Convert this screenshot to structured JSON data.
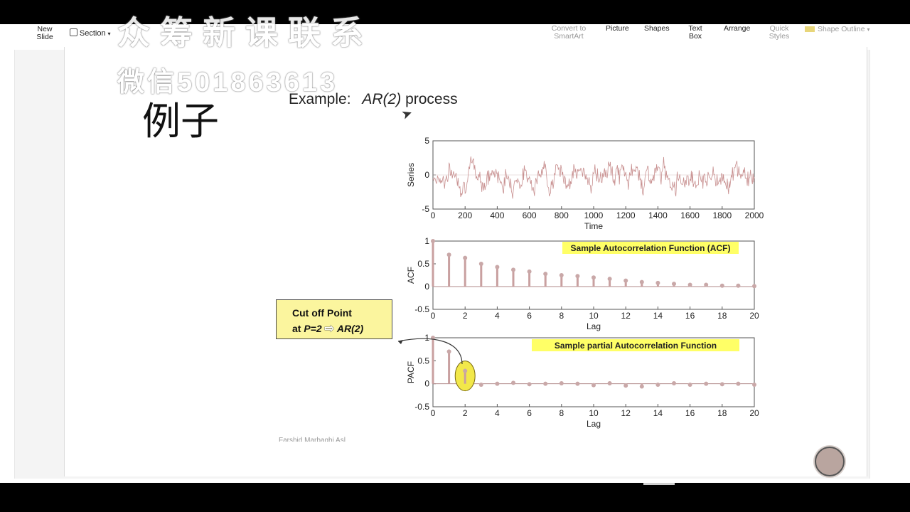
{
  "ribbon": {
    "new_slide": "New\nSlide",
    "section": "Section",
    "convert_smartart": "Convert to\nSmartArt",
    "picture": "Picture",
    "shapes": "Shapes",
    "text_box": "Text\nBox",
    "arrange": "Arrange",
    "quick_styles": "Quick\nStyles",
    "shape_outline": "Shape Outline"
  },
  "watermark": {
    "line1": "众筹新课联系",
    "line2": "微信501863613"
  },
  "slide": {
    "title_cn": "例子",
    "example_label": "Example:",
    "example_model": "AR(2)",
    "example_suffix": "process",
    "footer": "Farshid Marbaghi Asl"
  },
  "callout": {
    "line1": "Cut off Point",
    "line2_prefix": "at",
    "line2_p": "P=2",
    "line2_model": "AR(2)"
  },
  "colors": {
    "stem": "#c9a0a0",
    "series_line": "#c89090",
    "zero_line": "#b08888",
    "axis": "#555555",
    "label_box": "#ffff66",
    "highlight": "#f2e84a"
  },
  "chart_data": [
    {
      "type": "line",
      "xlabel": "Time",
      "ylabel": "Series",
      "xlim": [
        0,
        2000
      ],
      "ylim": [
        -5,
        5
      ],
      "xticks": [
        0,
        200,
        400,
        600,
        800,
        1000,
        1200,
        1400,
        1600,
        1800,
        2000
      ],
      "yticks": [
        -5,
        0,
        5
      ],
      "note": "Simulated AR(2) time series of 2000 observations fluctuating roughly between -3 and 3"
    },
    {
      "type": "bar",
      "title": "Sample Autocorrelation Function (ACF)",
      "xlabel": "Lag",
      "ylabel": "ACF",
      "xlim": [
        0,
        20
      ],
      "ylim": [
        -0.5,
        1
      ],
      "xticks": [
        0,
        2,
        4,
        6,
        8,
        10,
        12,
        14,
        16,
        18,
        20
      ],
      "yticks": [
        -0.5,
        0,
        0.5,
        1
      ],
      "x": [
        0,
        1,
        2,
        3,
        4,
        5,
        6,
        7,
        8,
        9,
        10,
        11,
        12,
        13,
        14,
        15,
        16,
        17,
        18,
        19,
        20
      ],
      "values": [
        1.0,
        0.7,
        0.63,
        0.5,
        0.43,
        0.37,
        0.33,
        0.28,
        0.25,
        0.23,
        0.2,
        0.17,
        0.13,
        0.1,
        0.08,
        0.06,
        0.04,
        0.04,
        0.02,
        0.02,
        0.01
      ]
    },
    {
      "type": "bar",
      "title": "Sample partial Autocorrelation Function",
      "xlabel": "Lag",
      "ylabel": "PACF",
      "xlim": [
        0,
        20
      ],
      "ylim": [
        -0.5,
        1
      ],
      "xticks": [
        0,
        2,
        4,
        6,
        8,
        10,
        12,
        14,
        16,
        18,
        20
      ],
      "yticks": [
        -0.5,
        0,
        0.5,
        1
      ],
      "x": [
        0,
        1,
        2,
        3,
        4,
        5,
        6,
        7,
        8,
        9,
        10,
        11,
        12,
        13,
        14,
        15,
        16,
        17,
        18,
        19,
        20
      ],
      "values": [
        1.0,
        0.7,
        0.28,
        -0.02,
        0.0,
        0.02,
        -0.01,
        0.0,
        0.01,
        0.0,
        -0.03,
        0.01,
        -0.04,
        -0.06,
        -0.02,
        0.01,
        -0.02,
        0.0,
        -0.01,
        0.0,
        -0.02
      ],
      "highlight_lag": 2
    }
  ]
}
